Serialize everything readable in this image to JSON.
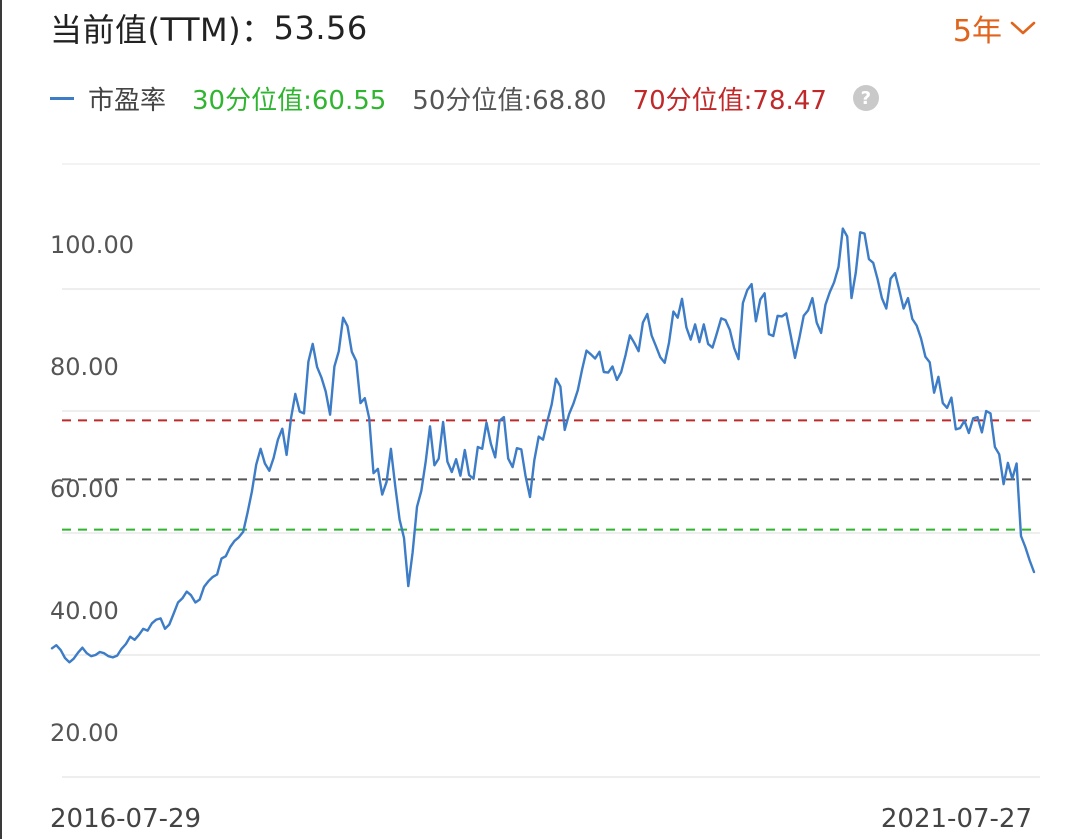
{
  "header": {
    "label": "当前值(TTM)：",
    "value": "53.56"
  },
  "period_selector": {
    "label": "5年",
    "icon": "chevron-down-icon"
  },
  "legend": {
    "series_label": "市盈率",
    "p30_label": "30分位值:60.55",
    "p50_label": "50分位值:68.80",
    "p70_label": "70分位值:78.47",
    "help_icon": "question-icon",
    "help_text": "?"
  },
  "colors": {
    "series": "#3d7cc6",
    "p30": "#2fb52f",
    "p50": "#555555",
    "p70": "#c0282a",
    "accent": "#e0641b",
    "grid": "#e8e8e8"
  },
  "chart_data": {
    "type": "line",
    "x_start_label": "2016-07-29",
    "x_end_label": "2021-07-27",
    "y_tick_labels": [
      "20.00",
      "40.00",
      "60.00",
      "80.00",
      "100.00"
    ],
    "y_ticks": [
      20,
      40,
      60,
      80,
      100
    ],
    "ylim": [
      10,
      110
    ],
    "grid": true,
    "series": [
      {
        "name": "市盈率",
        "values": [
          41.1,
          41.6,
          40.8,
          39.5,
          38.8,
          39.4,
          40.4,
          41.2,
          40.3,
          39.8,
          40.0,
          40.5,
          40.3,
          39.8,
          39.6,
          39.9,
          41.0,
          41.8,
          43.0,
          42.5,
          43.3,
          44.3,
          44.0,
          45.2,
          45.8,
          46.0,
          44.3,
          45.0,
          46.8,
          48.6,
          49.3,
          50.4,
          49.8,
          48.6,
          49.1,
          51.2,
          52.1,
          52.8,
          53.2,
          55.8,
          56.2,
          57.7,
          58.7,
          59.3,
          60.2,
          63.3,
          66.8,
          71.2,
          73.8,
          71.4,
          70.2,
          72.3,
          75.3,
          77.1,
          72.8,
          78.8,
          82.8,
          79.9,
          79.6,
          88.1,
          91.0,
          87.2,
          85.5,
          83.2,
          79.4,
          87.3,
          89.8,
          95.3,
          93.9,
          89.7,
          88.2,
          81.3,
          82.1,
          78.8,
          69.8,
          70.5,
          66.3,
          68.4,
          73.8,
          67.6,
          62.2,
          59.2,
          51.3,
          56.8,
          64.3,
          66.9,
          71.7,
          77.5,
          71.1,
          72.2,
          78.2,
          71.7,
          70.0,
          72.1,
          69.4,
          73.6,
          69.5,
          68.9,
          74.1,
          73.8,
          78.1,
          74.6,
          72.4,
          78.4,
          79.0,
          72.2,
          70.8,
          73.9,
          73.7,
          69.3,
          65.9,
          71.9,
          75.8,
          75.3,
          78.3,
          81.1,
          85.3,
          84.0,
          76.9,
          79.5,
          81.2,
          83.4,
          86.8,
          89.9,
          89.3,
          88.6,
          89.7,
          86.4,
          86.3,
          87.3,
          85.1,
          86.4,
          89.2,
          92.4,
          91.2,
          89.8,
          94.5,
          95.9,
          92.4,
          90.6,
          88.8,
          87.9,
          91.2,
          96.3,
          95.3,
          98.4,
          93.7,
          91.7,
          94.2,
          91.3,
          94.2,
          91.0,
          90.4,
          92.7,
          95.2,
          94.9,
          93.3,
          90.3,
          88.5,
          97.7,
          99.8,
          100.8,
          94.7,
          98.3,
          99.3,
          92.6,
          92.3,
          95.6,
          95.5,
          96.0,
          92.4,
          88.7,
          92.0,
          95.6,
          96.5,
          98.5,
          94.5,
          92.8,
          97.4,
          99.5,
          101.1,
          103.6,
          109.9,
          108.6,
          98.5,
          102.7,
          109.3,
          109.1,
          104.9,
          104.3,
          101.6,
          98.5,
          96.8,
          101.7,
          102.6,
          99.8,
          96.8,
          98.5,
          95.1,
          94.0,
          91.9,
          88.9,
          88.0,
          83.0,
          85.6,
          81.3,
          80.5,
          82.2,
          77.0,
          77.2,
          78.4,
          76.4,
          78.8,
          79.0,
          76.5,
          80.0,
          79.6,
          74.1,
          72.9,
          68.0,
          71.5,
          68.9,
          71.4,
          59.5,
          57.7,
          55.5,
          53.6
        ]
      }
    ],
    "reference_lines": [
      {
        "label": "30分位值",
        "value": 60.55,
        "color": "#2fb52f",
        "style": "dashed"
      },
      {
        "label": "50分位值",
        "value": 68.8,
        "color": "#555555",
        "style": "dashed"
      },
      {
        "label": "70分位值",
        "value": 78.47,
        "color": "#c0282a",
        "style": "dashed"
      }
    ]
  }
}
